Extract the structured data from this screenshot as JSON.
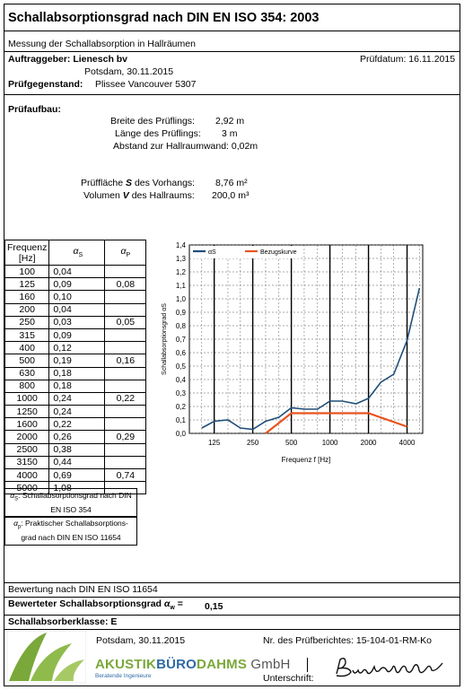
{
  "header": {
    "title": "Schallabsorptionsgrad nach DIN EN ISO 354: 2003",
    "subtitle": "Messung der Schallabsorption in Hallräumen"
  },
  "client": {
    "label": "Auftraggeber: Lienesch bv",
    "location_date": "Potsdam, 30.11.2015",
    "test_date": "Prüfdatum: 16.11.2015",
    "test_object_label": "Prüfgegenstand:",
    "test_object": "Plissee Vancouver 5307"
  },
  "setup": {
    "label": "Prüfaufbau:",
    "width_label": "Breite des Prüflings:",
    "width_value": "2,92 m",
    "length_label": "Länge des Prüflings:",
    "length_value": "3 m",
    "distance": "Abstand zur Hallraumwand: 0,02m",
    "area_label_pre": "Prüffläche ",
    "area_label_sym": "S",
    "area_label_post": " des Vorhangs:",
    "area_value": "8,76 m²",
    "volume_label_pre": "Volumen ",
    "volume_label_sym": "V",
    "volume_label_post": " des Hallraums:",
    "volume_value": "200,0 m³"
  },
  "table": {
    "head_freq": "Frequenz",
    "head_unit": "[Hz]",
    "head_as": "α",
    "head_as_sub": "S",
    "head_ap": "α",
    "head_ap_sub": "P",
    "rows": [
      {
        "f": "100",
        "as": "0,04",
        "ap": ""
      },
      {
        "f": "125",
        "as": "0,09",
        "ap": "0,08"
      },
      {
        "f": "160",
        "as": "0,10",
        "ap": ""
      },
      {
        "f": "200",
        "as": "0,04",
        "ap": ""
      },
      {
        "f": "250",
        "as": "0,03",
        "ap": "0,05"
      },
      {
        "f": "315",
        "as": "0,09",
        "ap": ""
      },
      {
        "f": "400",
        "as": "0,12",
        "ap": ""
      },
      {
        "f": "500",
        "as": "0,19",
        "ap": "0,16"
      },
      {
        "f": "630",
        "as": "0,18",
        "ap": ""
      },
      {
        "f": "800",
        "as": "0,18",
        "ap": ""
      },
      {
        "f": "1000",
        "as": "0,24",
        "ap": "0,22"
      },
      {
        "f": "1250",
        "as": "0,24",
        "ap": ""
      },
      {
        "f": "1600",
        "as": "0,22",
        "ap": ""
      },
      {
        "f": "2000",
        "as": "0,26",
        "ap": "0,29"
      },
      {
        "f": "2500",
        "as": "0,38",
        "ap": ""
      },
      {
        "f": "3150",
        "as": "0,44",
        "ap": ""
      },
      {
        "f": "4000",
        "as": "0,69",
        "ap": "0,74"
      },
      {
        "f": "5000",
        "as": "1,08",
        "ap": ""
      }
    ],
    "note_as_sym": "α",
    "note_as_sub": "S",
    "note_as_text": ": Schallabsorptionsgrad nach DIN EN ISO 354",
    "note_ap_sym": "α",
    "note_ap_sub": "p",
    "note_ap_text": ": Praktischer Schallabsorptions-grad nach DIN EN ISO 11654"
  },
  "chart_data": {
    "type": "line",
    "x_scale": "log",
    "x": [
      100,
      125,
      160,
      200,
      250,
      315,
      400,
      500,
      630,
      800,
      1000,
      1250,
      1600,
      2000,
      2500,
      3150,
      4000,
      5000
    ],
    "series": [
      {
        "name": "αS",
        "color": "#1f4e79",
        "values": [
          0.04,
          0.09,
          0.1,
          0.04,
          0.03,
          0.09,
          0.12,
          0.19,
          0.18,
          0.18,
          0.24,
          0.24,
          0.22,
          0.26,
          0.38,
          0.44,
          0.69,
          1.08
        ]
      },
      {
        "name": "Bezugskurve",
        "color": "#e8541e",
        "x": [
          315,
          500,
          2000,
          4000
        ],
        "values": [
          0.0,
          0.15,
          0.15,
          0.05
        ]
      }
    ],
    "xticks": [
      "125",
      "250",
      "500",
      "1000",
      "2000",
      "4000"
    ],
    "yticks": [
      "0,0",
      "0,1",
      "0,2",
      "0,3",
      "0,4",
      "0,5",
      "0,6",
      "0,7",
      "0,8",
      "0,9",
      "1,0",
      "1,1",
      "1,2",
      "1,3",
      "1,4"
    ],
    "ylim": [
      0,
      1.4
    ],
    "xlabel": "Frequenz f [Hz]",
    "ylabel": "Schallabsorptionsgrad αS",
    "legend_placement": "top",
    "grid": true
  },
  "rating": {
    "line1": "Bewertung nach DIN EN ISO 11654",
    "line2_pre": "Bewerteter Schallabsorptionsgrad ",
    "line2_sym": "α",
    "line2_sub": "w",
    "line2_eq": " =",
    "value": "0,15",
    "class_label": "Schallabsorberklasse: E"
  },
  "footer": {
    "place_date": "Potsdam, 30.11.2015",
    "report_no": "Nr. des Prüfberichtes: 15-104-01-RM-Ko",
    "company_a": "AKUSTIK",
    "company_b": "BÜRO",
    "company_c": "DAHMS",
    "company_d": " GmbH",
    "tagline": "Beratende Ingenieure",
    "signature_label": "Unterschrift:",
    "colors": {
      "green": "#7aa83a",
      "blue": "#2f6aa5"
    }
  }
}
